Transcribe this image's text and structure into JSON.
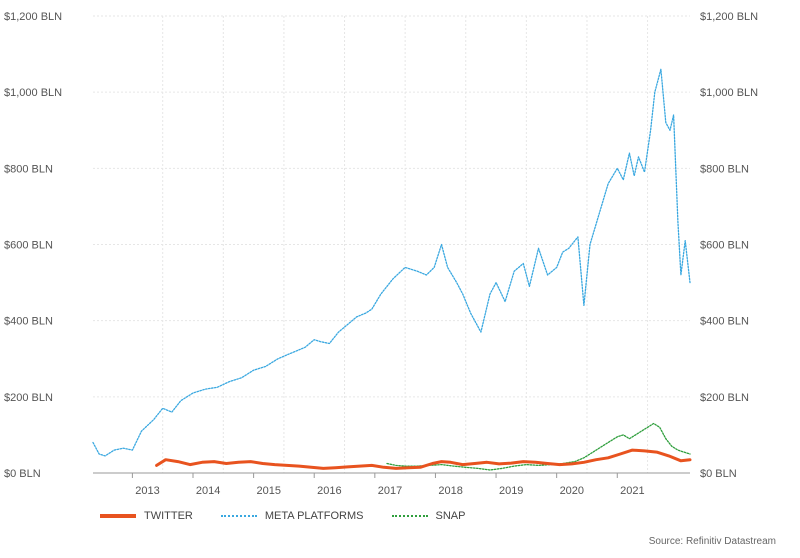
{
  "colors": {
    "twitter": "#e8531f",
    "meta": "#3aa8e0",
    "snap": "#2e9e3c",
    "grid": "#e6e6e6",
    "axis": "#999999"
  },
  "legend": {
    "twitter": "TWITTER",
    "meta": "META PLATFORMS",
    "snap": "SNAP"
  },
  "source": "Source: Refinitiv Datastream",
  "chart_data": {
    "type": "line",
    "title": "",
    "xlabel": "",
    "ylabel": "",
    "x_range": [
      2012.35,
      2022.2
    ],
    "ylim": [
      0,
      1200
    ],
    "y_ticks": [
      {
        "value": 0,
        "label": "$0 BLN"
      },
      {
        "value": 200,
        "label": "$200 BLN"
      },
      {
        "value": 400,
        "label": "$400 BLN"
      },
      {
        "value": 600,
        "label": "$600 BLN"
      },
      {
        "value": 800,
        "label": "$800 BLN"
      },
      {
        "value": 1000,
        "label": "$1,000 BLN"
      },
      {
        "value": 1200,
        "label": "$1,200 BLN"
      }
    ],
    "x_ticks": [
      {
        "value": 2013,
        "label": "2013"
      },
      {
        "value": 2014,
        "label": "2014"
      },
      {
        "value": 2015,
        "label": "2015"
      },
      {
        "value": 2016,
        "label": "2016"
      },
      {
        "value": 2017,
        "label": "2017"
      },
      {
        "value": 2018,
        "label": "2018"
      },
      {
        "value": 2019,
        "label": "2019"
      },
      {
        "value": 2020,
        "label": "2020"
      },
      {
        "value": 2021,
        "label": "2021"
      }
    ],
    "grid": true,
    "legend_position": "bottom-left",
    "series": [
      {
        "name": "META PLATFORMS",
        "style": "dotted",
        "x": [
          2012.35,
          2012.45,
          2012.55,
          2012.7,
          2012.85,
          2013.0,
          2013.15,
          2013.35,
          2013.5,
          2013.65,
          2013.8,
          2014.0,
          2014.2,
          2014.4,
          2014.6,
          2014.8,
          2015.0,
          2015.2,
          2015.4,
          2015.55,
          2015.7,
          2015.85,
          2016.0,
          2016.1,
          2016.25,
          2016.4,
          2016.55,
          2016.7,
          2016.85,
          2016.95,
          2017.1,
          2017.3,
          2017.5,
          2017.7,
          2017.85,
          2017.98,
          2018.1,
          2018.2,
          2018.35,
          2018.45,
          2018.58,
          2018.75,
          2018.9,
          2019.0,
          2019.15,
          2019.3,
          2019.45,
          2019.55,
          2019.7,
          2019.85,
          2020.0,
          2020.1,
          2020.2,
          2020.35,
          2020.45,
          2020.55,
          2020.7,
          2020.85,
          2021.0,
          2021.1,
          2021.2,
          2021.28,
          2021.35,
          2021.45,
          2021.55,
          2021.62,
          2021.72,
          2021.8,
          2021.87,
          2021.93,
          2022.0,
          2022.05,
          2022.12,
          2022.2
        ],
        "values": [
          80,
          50,
          45,
          60,
          65,
          60,
          110,
          140,
          170,
          160,
          190,
          210,
          220,
          225,
          240,
          250,
          270,
          280,
          300,
          310,
          320,
          330,
          350,
          345,
          340,
          370,
          390,
          410,
          420,
          430,
          470,
          510,
          540,
          530,
          520,
          540,
          600,
          540,
          500,
          470,
          420,
          370,
          470,
          500,
          450,
          530,
          550,
          490,
          590,
          520,
          540,
          580,
          590,
          620,
          440,
          600,
          680,
          760,
          800,
          770,
          840,
          780,
          830,
          790,
          900,
          1000,
          1060,
          920,
          900,
          940,
          660,
          520,
          610,
          500
        ]
      },
      {
        "name": "TWITTER",
        "style": "solid",
        "x": [
          2013.4,
          2013.55,
          2013.75,
          2013.95,
          2014.15,
          2014.35,
          2014.55,
          2014.75,
          2014.95,
          2015.15,
          2015.35,
          2015.55,
          2015.75,
          2015.95,
          2016.15,
          2016.35,
          2016.55,
          2016.75,
          2016.95,
          2017.15,
          2017.35,
          2017.55,
          2017.75,
          2017.95,
          2018.1,
          2018.25,
          2018.45,
          2018.65,
          2018.85,
          2019.05,
          2019.25,
          2019.45,
          2019.65,
          2019.85,
          2020.05,
          2020.25,
          2020.45,
          2020.65,
          2020.85,
          2021.05,
          2021.25,
          2021.45,
          2021.65,
          2021.85,
          2022.05,
          2022.2
        ],
        "values": [
          20,
          35,
          30,
          22,
          28,
          30,
          25,
          28,
          30,
          25,
          22,
          20,
          18,
          15,
          12,
          14,
          16,
          18,
          20,
          15,
          12,
          14,
          15,
          25,
          30,
          28,
          22,
          25,
          28,
          24,
          26,
          30,
          28,
          25,
          22,
          24,
          28,
          35,
          40,
          50,
          60,
          58,
          55,
          45,
          32,
          35
        ]
      },
      {
        "name": "SNAP",
        "style": "dotted",
        "x": [
          2017.2,
          2017.35,
          2017.5,
          2017.7,
          2017.9,
          2018.1,
          2018.3,
          2018.5,
          2018.7,
          2018.9,
          2019.1,
          2019.3,
          2019.5,
          2019.7,
          2019.9,
          2020.1,
          2020.3,
          2020.45,
          2020.6,
          2020.75,
          2020.9,
          2021.0,
          2021.1,
          2021.2,
          2021.3,
          2021.4,
          2021.5,
          2021.6,
          2021.7,
          2021.8,
          2021.9,
          2022.0,
          2022.1,
          2022.2
        ],
        "values": [
          25,
          20,
          18,
          18,
          20,
          22,
          18,
          15,
          12,
          8,
          12,
          18,
          22,
          20,
          22,
          25,
          30,
          40,
          55,
          70,
          85,
          95,
          100,
          90,
          100,
          110,
          120,
          130,
          120,
          90,
          70,
          60,
          55,
          50
        ]
      }
    ]
  }
}
